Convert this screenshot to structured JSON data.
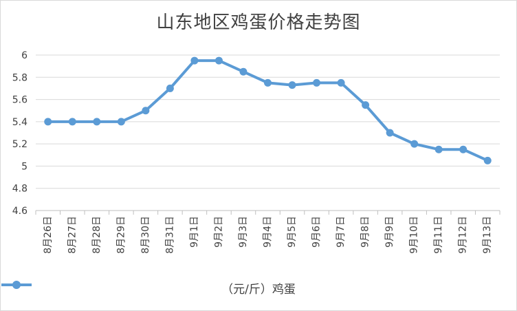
{
  "chart_data": {
    "type": "line",
    "title": "山东地区鸡蛋价格走势图",
    "categories": [
      "8月26日",
      "8月27日",
      "8月28日",
      "8月29日",
      "8月30日",
      "8月31日",
      "9月1日",
      "9月2日",
      "9月3日",
      "9月4日",
      "9月5日",
      "9月6日",
      "9月7日",
      "9月8日",
      "9月9日",
      "9月10日",
      "9月11日",
      "9月12日",
      "9月13日"
    ],
    "series": [
      {
        "name": "（元/斤）鸡蛋",
        "values": [
          5.4,
          5.4,
          5.4,
          5.4,
          5.5,
          5.7,
          5.95,
          5.95,
          5.85,
          5.75,
          5.73,
          5.75,
          5.75,
          5.55,
          5.3,
          5.2,
          5.15,
          5.15,
          5.05
        ]
      }
    ],
    "ylim": [
      4.6,
      6
    ],
    "yticks": [
      "4.6",
      "4.8",
      "5",
      "5.2",
      "5.4",
      "5.6",
      "5.8",
      "6"
    ],
    "grid": true,
    "legend_position": "bottom",
    "colors": {
      "line": "#5b9bd5",
      "grid": "#d9d9d9",
      "text": "#404040"
    }
  }
}
